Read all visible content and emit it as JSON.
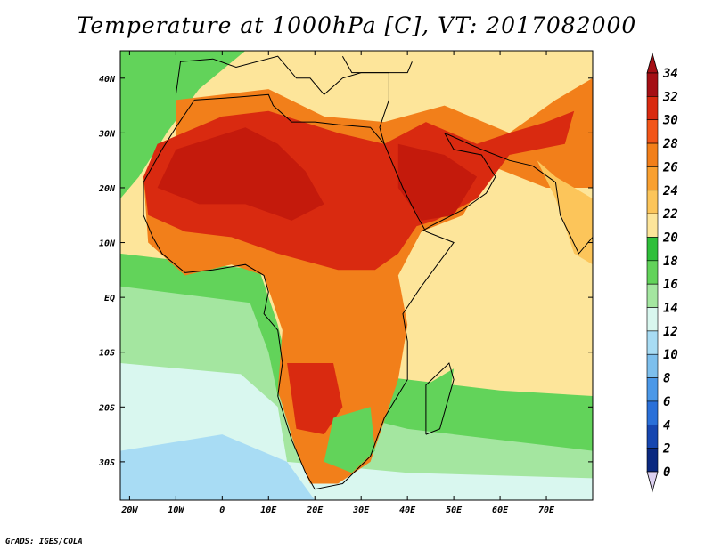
{
  "title": "Temperature at 1000hPa [C], VT: 2017082000",
  "credit": "GrADS: IGES/COLA",
  "lat_labels": [
    "40N",
    "30N",
    "20N",
    "10N",
    "EQ",
    "10S",
    "20S",
    "30S"
  ],
  "lon_labels": [
    "20W",
    "10W",
    "0",
    "10E",
    "20E",
    "30E",
    "40E",
    "50E",
    "60E",
    "70E"
  ],
  "colorbar": {
    "labels": [
      "34",
      "32",
      "30",
      "28",
      "26",
      "24",
      "22",
      "20",
      "18",
      "16",
      "14",
      "12",
      "10",
      "8",
      "6",
      "4",
      "2",
      "0"
    ],
    "colors": [
      "#a50f15",
      "#d92a10",
      "#f25519",
      "#f27f1a",
      "#f9a030",
      "#fcc55a",
      "#fde59a",
      "#2fbf3a",
      "#62d35a",
      "#a4e6a0",
      "#d9f7ef",
      "#a8dcf4",
      "#7dbfed",
      "#4b98e8",
      "#2a70d9",
      "#1646b0",
      "#0a2880",
      "#060a60"
    ],
    "under_color": "#dcd0f0"
  },
  "map_extent": {
    "lon": [
      -22,
      80
    ],
    "lat": [
      -37,
      45
    ]
  },
  "field_colors": {
    "ocean_south_cold": "#a8dcf4",
    "ocean_south_cool": "#d9f7ef",
    "ocean_mid": "#a4e6a0",
    "ocean_green": "#62d35a",
    "ocean_warm": "#fde59a",
    "land_hot": "#d92a10",
    "land_very_hot": "#c41a0c",
    "land_warm": "#f27f1a",
    "land_mild": "#fcc55a"
  }
}
